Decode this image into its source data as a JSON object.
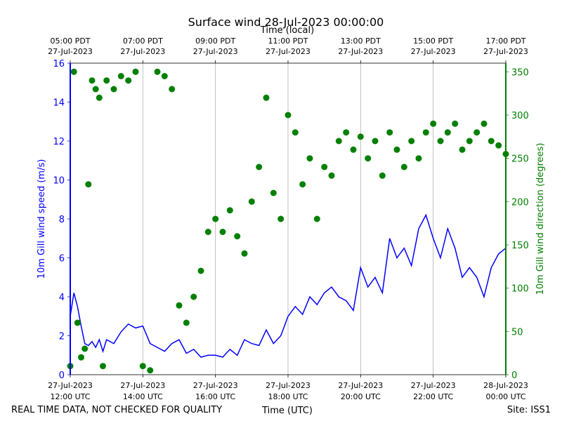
{
  "chart_data": {
    "type": "line",
    "title": "Surface wind 28-Jul-2023 00:00:00",
    "top_axis_label": "Time (local)",
    "xlabel": "Time (UTC)",
    "ylabel_left": "10m Gill wind speed (m/s)",
    "ylabel_right": "10m Gill wind direction (degrees)",
    "footer_left": "REAL TIME DATA, NOT CHECKED FOR QUALITY",
    "footer_right": "Site: ISS1",
    "x_range_hours_utc": [
      12,
      24
    ],
    "ylim_left": [
      0,
      16
    ],
    "ylim_right": [
      0,
      360
    ],
    "grid": "vertical",
    "bottom_ticks": [
      {
        "hour": 12,
        "date": "27-Jul-2023",
        "time": "12:00 UTC"
      },
      {
        "hour": 14,
        "date": "27-Jul-2023",
        "time": "14:00 UTC"
      },
      {
        "hour": 16,
        "date": "27-Jul-2023",
        "time": "16:00 UTC"
      },
      {
        "hour": 18,
        "date": "27-Jul-2023",
        "time": "18:00 UTC"
      },
      {
        "hour": 20,
        "date": "27-Jul-2023",
        "time": "20:00 UTC"
      },
      {
        "hour": 22,
        "date": "27-Jul-2023",
        "time": "22:00 UTC"
      },
      {
        "hour": 24,
        "date": "28-Jul-2023",
        "time": "00:00 UTC"
      }
    ],
    "top_ticks": [
      {
        "hour": 12,
        "time": "05:00 PDT",
        "date": "27-Jul-2023"
      },
      {
        "hour": 14,
        "time": "07:00 PDT",
        "date": "27-Jul-2023"
      },
      {
        "hour": 16,
        "time": "09:00 PDT",
        "date": "27-Jul-2023"
      },
      {
        "hour": 18,
        "time": "11:00 PDT",
        "date": "27-Jul-2023"
      },
      {
        "hour": 20,
        "time": "13:00 PDT",
        "date": "27-Jul-2023"
      },
      {
        "hour": 22,
        "time": "15:00 PDT",
        "date": "27-Jul-2023"
      },
      {
        "hour": 24,
        "time": "17:00 PDT",
        "date": "27-Jul-2023"
      }
    ],
    "left_ticks": [
      0,
      2,
      4,
      6,
      8,
      10,
      12,
      14,
      16
    ],
    "right_ticks": [
      0,
      50,
      100,
      150,
      200,
      250,
      300,
      350
    ],
    "series": [
      {
        "name": "wind speed",
        "axis": "left",
        "style": "line",
        "color": "#0000ff",
        "hours": [
          12.0,
          12.1,
          12.2,
          12.3,
          12.4,
          12.5,
          12.6,
          12.7,
          12.8,
          12.9,
          13.0,
          13.2,
          13.4,
          13.6,
          13.8,
          14.0,
          14.2,
          14.4,
          14.6,
          14.8,
          15.0,
          15.2,
          15.4,
          15.6,
          15.8,
          16.0,
          16.2,
          16.4,
          16.6,
          16.8,
          17.0,
          17.2,
          17.4,
          17.6,
          17.8,
          18.0,
          18.2,
          18.4,
          18.6,
          18.8,
          19.0,
          19.2,
          19.4,
          19.6,
          19.8,
          20.0,
          20.2,
          20.4,
          20.6,
          20.8,
          21.0,
          21.2,
          21.4,
          21.6,
          21.8,
          22.0,
          22.2,
          22.4,
          22.6,
          22.8,
          23.0,
          23.2,
          23.4,
          23.6,
          23.8,
          24.0
        ],
        "values": [
          3.0,
          4.2,
          3.5,
          2.5,
          1.6,
          1.5,
          1.7,
          1.4,
          1.8,
          1.2,
          1.8,
          1.6,
          2.2,
          2.6,
          2.4,
          2.5,
          1.6,
          1.4,
          1.2,
          1.6,
          1.8,
          1.1,
          1.3,
          0.9,
          1.0,
          1.0,
          0.9,
          1.3,
          1.0,
          1.8,
          1.6,
          1.5,
          2.3,
          1.6,
          2.0,
          3.0,
          3.5,
          3.1,
          4.0,
          3.6,
          4.2,
          4.5,
          4.0,
          3.8,
          3.3,
          5.5,
          4.5,
          5.0,
          4.2,
          7.0,
          6.0,
          6.5,
          5.6,
          7.5,
          8.2,
          7.0,
          6.0,
          7.5,
          6.5,
          5.0,
          5.5,
          5.0,
          4.0,
          5.5,
          6.2,
          6.5
        ]
      },
      {
        "name": "wind direction",
        "axis": "right",
        "style": "scatter",
        "color": "#008000",
        "hours": [
          12.0,
          12.1,
          12.2,
          12.3,
          12.4,
          12.5,
          12.6,
          12.7,
          12.8,
          12.9,
          13.0,
          13.2,
          13.4,
          13.6,
          13.8,
          14.0,
          14.2,
          14.4,
          14.6,
          14.8,
          15.0,
          15.2,
          15.4,
          15.6,
          15.8,
          16.0,
          16.2,
          16.4,
          16.6,
          16.8,
          17.0,
          17.2,
          17.4,
          17.6,
          17.8,
          18.0,
          18.2,
          18.4,
          18.6,
          18.8,
          19.0,
          19.2,
          19.4,
          19.6,
          19.8,
          20.0,
          20.2,
          20.4,
          20.6,
          20.8,
          21.0,
          21.2,
          21.4,
          21.6,
          21.8,
          22.0,
          22.2,
          22.4,
          22.6,
          22.8,
          23.0,
          23.2,
          23.4,
          23.6,
          23.8,
          24.0
        ],
        "values": [
          10,
          350,
          60,
          20,
          30,
          220,
          340,
          330,
          320,
          10,
          340,
          330,
          345,
          340,
          350,
          10,
          5,
          350,
          345,
          330,
          80,
          60,
          90,
          120,
          165,
          180,
          165,
          190,
          160,
          140,
          200,
          240,
          320,
          210,
          180,
          300,
          280,
          220,
          250,
          180,
          240,
          230,
          270,
          280,
          260,
          275,
          250,
          270,
          230,
          280,
          260,
          240,
          270,
          250,
          280,
          290,
          270,
          280,
          290,
          260,
          270,
          280,
          290,
          270,
          265,
          255
        ]
      }
    ]
  }
}
